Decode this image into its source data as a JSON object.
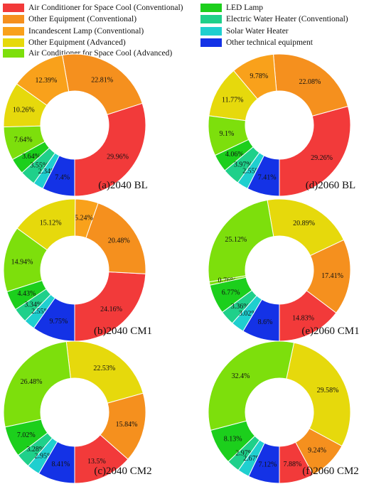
{
  "legend": [
    {
      "label": "Air Conditioner for Space Cool (Conventional)",
      "color": "#f23a3a"
    },
    {
      "label": "Other Equipment (Conventional)",
      "color": "#f5901e"
    },
    {
      "label": "Incandescent Lamp (Conventional)",
      "color": "#f9a11b"
    },
    {
      "label": "Other Equipment (Advanced)",
      "color": "#e6d90c"
    },
    {
      "label": "Air Conditioner for Space Cool (Advanced)",
      "color": "#7ddf0c"
    },
    {
      "label": "LED Lamp",
      "color": "#1ccf1c"
    },
    {
      "label": "Electric Water Heater (Conventional)",
      "color": "#1fd08a"
    },
    {
      "label": "Solar Water Heater",
      "color": "#1fcfcf"
    },
    {
      "label": "Other technical equipment",
      "color": "#1432e6"
    }
  ],
  "chart_data": [
    {
      "type": "pie",
      "title": "(a)2040 BL",
      "values": [
        29.96,
        22.81,
        12.39,
        10.26,
        7.64,
        3.64,
        3.55,
        2.34,
        7.4
      ],
      "labels": [
        "29.96%",
        "22.81%",
        "12.39%",
        "10.26%",
        "7.64%",
        "3.64%",
        "3.55%",
        "2.34%",
        "7.4%"
      ],
      "colors": [
        "#f23a3a",
        "#f5901e",
        "#f9a11b",
        "#e6d90c",
        "#7ddf0c",
        "#1ccf1c",
        "#1fd08a",
        "#1fcfcf",
        "#1432e6"
      ]
    },
    {
      "type": "pie",
      "title": "(d)2060 BL",
      "values": [
        29.26,
        22.08,
        9.78,
        11.77,
        9.1,
        4.06,
        3.97,
        2.55,
        7.41
      ],
      "labels": [
        "29.26%",
        "22.08%",
        "9.78%",
        "11.77%",
        "9.1%",
        "4.06%",
        "3.97%",
        "2.55%",
        "7.41%"
      ],
      "colors": [
        "#f23a3a",
        "#f5901e",
        "#f9a11b",
        "#e6d90c",
        "#7ddf0c",
        "#1ccf1c",
        "#1fd08a",
        "#1fcfcf",
        "#1432e6"
      ]
    },
    {
      "type": "pie",
      "title": "(b)2040 CM1",
      "values": [
        24.16,
        20.48,
        5.24,
        15.12,
        14.94,
        4.43,
        3.34,
        2.55,
        9.75
      ],
      "labels": [
        "24.16%",
        "20.48%",
        "5.24%",
        "15.12%",
        "14.94%",
        "4.43%",
        "3.34%",
        "2.55%",
        "9.75%"
      ],
      "colors": [
        "#f23a3a",
        "#f5901e",
        "#f9a11b",
        "#e6d90c",
        "#7ddf0c",
        "#1ccf1c",
        "#1fd08a",
        "#1fcfcf",
        "#1432e6"
      ]
    },
    {
      "type": "pie",
      "title": "(e)2060 CM1",
      "values": [
        14.83,
        17.41,
        20.89,
        25.12,
        0.76,
        6.77,
        3.36,
        3.02,
        8.6
      ],
      "labels": [
        "14.83%",
        "17.41%",
        "20.89%",
        "25.12%",
        "0.76%",
        "6.77%",
        "3.36%",
        "3.02%",
        "8.6%"
      ],
      "colors": [
        "#f23a3a",
        "#f5901e",
        "#e6d90c",
        "#7ddf0c",
        "#7ddf0c",
        "#1ccf1c",
        "#1fd08a",
        "#1fcfcf",
        "#1432e6"
      ]
    },
    {
      "type": "pie",
      "title": "(c)2040 CM2",
      "values": [
        13.5,
        15.84,
        22.53,
        26.48,
        7.02,
        3.28,
        2.95,
        8.41
      ],
      "labels": [
        "13.5%",
        "15.84%",
        "22.53%",
        "26.48%",
        "7.02%",
        "3.28%",
        "2.95%",
        "8.41%"
      ],
      "colors": [
        "#f23a3a",
        "#f5901e",
        "#e6d90c",
        "#7ddf0c",
        "#1ccf1c",
        "#1fd08a",
        "#1fcfcf",
        "#1432e6"
      ]
    },
    {
      "type": "pie",
      "title": "(f)2060 CM2",
      "values": [
        7.88,
        9.24,
        29.58,
        32.4,
        8.13,
        2.97,
        2.67,
        7.12
      ],
      "labels": [
        "7.88%",
        "9.24%",
        "29.58%",
        "32.4%",
        "8.13%",
        "2.97%",
        "2.67%",
        "7.12%"
      ],
      "colors": [
        "#f23a3a",
        "#f5901e",
        "#e6d90c",
        "#7ddf0c",
        "#1ccf1c",
        "#1fd08a",
        "#1fcfcf",
        "#1432e6"
      ]
    }
  ]
}
